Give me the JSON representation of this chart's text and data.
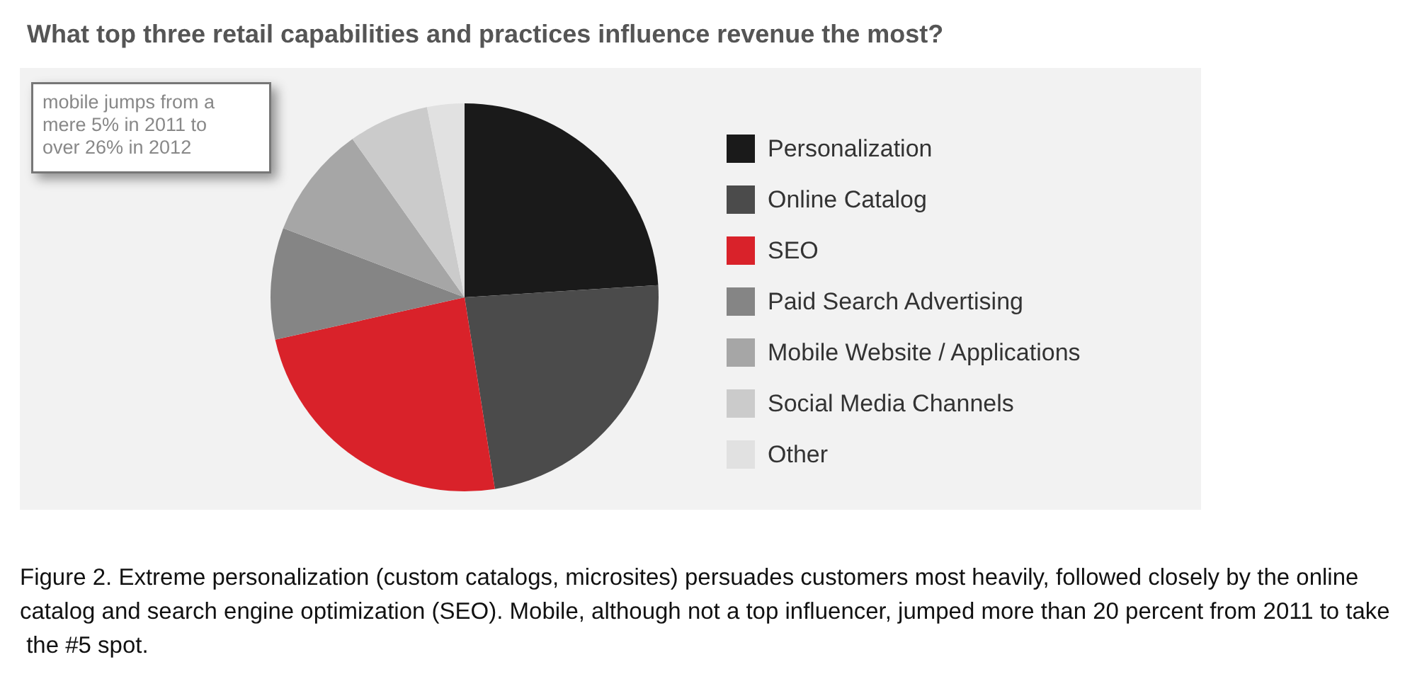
{
  "chart_data": {
    "type": "pie",
    "title": "What top three retail capabilities and practices influence revenue the most?",
    "categories": [
      "Personalization",
      "Online Catalog",
      "SEO",
      "Paid Search Advertising",
      "Mobile Website / Applications",
      "Social Media Channels",
      "Other"
    ],
    "values": [
      24,
      23.5,
      24,
      9.3,
      9.4,
      6.7,
      3.1
    ],
    "colors": [
      "#1a1a1a",
      "#4b4b4b",
      "#d9222a",
      "#858585",
      "#a6a6a6",
      "#cbcbcb",
      "#e1e1e1"
    ],
    "legend": "right",
    "annotations": [
      "mobile jumps from a mere 5% in 2011 to over 26% in 2012",
      "Figure 2. Extreme personalization (custom catalogs, microsites) persuades customers most heavily, followed closely by the online catalog and search engine optimization (SEO). Mobile, although not a top influencer, jumped more than 20 percent from 2011 to take the #5 spot."
    ]
  }
}
